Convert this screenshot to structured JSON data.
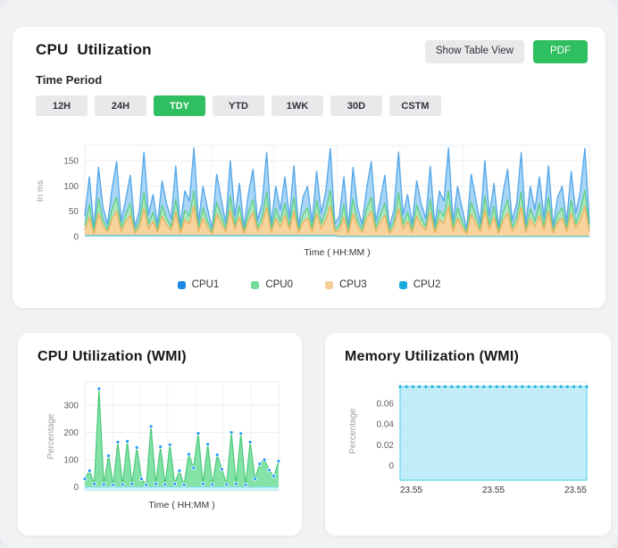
{
  "top_card": {
    "title": "CPU  Utilization",
    "actions": {
      "show_table": "Show Table View",
      "pdf": "PDF"
    },
    "time_period_label": "Time Period",
    "periods": [
      {
        "label": "12H",
        "active": false
      },
      {
        "label": "24H",
        "active": false
      },
      {
        "label": "TDY",
        "active": true
      },
      {
        "label": "YTD",
        "active": false
      },
      {
        "label": "1WK",
        "active": false
      },
      {
        "label": "30D",
        "active": false
      },
      {
        "label": "CSTM",
        "active": false
      }
    ],
    "legend": [
      {
        "label": "CPU1",
        "color": "#1e8ae8"
      },
      {
        "label": "CPU0",
        "color": "#76dc9a"
      },
      {
        "label": "CPU3",
        "color": "#f6cf96"
      },
      {
        "label": "CPU2",
        "color": "#18acdd"
      }
    ],
    "accent_green": "#2fbe60"
  },
  "chart_data": [
    {
      "id": "cpu",
      "type": "area",
      "stacked": true,
      "title": "CPU Utilization",
      "xlabel": "Time ( HH:MM )",
      "ylabel": "In ms",
      "ylim": [
        0,
        180
      ],
      "grid": true,
      "legend_position": "bottom",
      "yticks": [
        {
          "v": 0,
          "label": "0"
        },
        {
          "v": 50,
          "label": "50"
        },
        {
          "v": 100,
          "label": "100"
        },
        {
          "v": 150,
          "label": "150"
        }
      ],
      "xticks": [],
      "series": [
        {
          "name": "CPU3",
          "mode": "stack",
          "fill": "#f7d49e",
          "stroke": "#efb360",
          "values": [
            12,
            38,
            5,
            45,
            20,
            8,
            35,
            50,
            10,
            28,
            42,
            6,
            18,
            55,
            15,
            30,
            8,
            40,
            22,
            12,
            48,
            7,
            33,
            25,
            60,
            10,
            36,
            18,
            5,
            44,
            26,
            9,
            52,
            14,
            38,
            6,
            30,
            47,
            11,
            24,
            58,
            8,
            35,
            19,
            42,
            13,
            50,
            7,
            28,
            36,
            10,
            45,
            16,
            32,
            60,
            9,
            12,
            38,
            5,
            45,
            20,
            8,
            35,
            50,
            10,
            28,
            42,
            6,
            18,
            55,
            15,
            30,
            8,
            40,
            22,
            12,
            48,
            7,
            33,
            25,
            60,
            10,
            36,
            18,
            5,
            44,
            26,
            9,
            52,
            14,
            38,
            6,
            30,
            47,
            11,
            24,
            58,
            8,
            35,
            19,
            42,
            13,
            50,
            7,
            28,
            36,
            10,
            45,
            16,
            32,
            60,
            9
          ]
        },
        {
          "name": "CPU0",
          "mode": "stack",
          "fill": "#ace6bd",
          "stroke": "#61cf8a",
          "values": [
            10,
            25,
            4,
            30,
            12,
            6,
            20,
            28,
            8,
            15,
            24,
            5,
            12,
            32,
            10,
            18,
            6,
            22,
            14,
            8,
            26,
            5,
            19,
            15,
            30,
            7,
            21,
            12,
            4,
            24,
            16,
            6,
            28,
            9,
            22,
            4,
            18,
            26,
            7,
            14,
            30,
            5,
            20,
            11,
            24,
            8,
            28,
            4,
            16,
            21,
            6,
            26,
            10,
            19,
            32,
            5,
            10,
            25,
            4,
            30,
            12,
            6,
            20,
            28,
            8,
            15,
            24,
            5,
            12,
            32,
            10,
            18,
            6,
            22,
            14,
            8,
            26,
            5,
            19,
            15,
            30,
            7,
            21,
            12,
            4,
            24,
            16,
            6,
            28,
            9,
            22,
            4,
            18,
            26,
            7,
            14,
            30,
            5,
            20,
            11,
            24,
            8,
            28,
            4,
            16,
            21,
            6,
            26,
            10,
            19,
            32,
            5
          ]
        },
        {
          "name": "CPU1",
          "mode": "stack",
          "fill": "#aad6f6",
          "stroke": "#58a9e9",
          "values": [
            18,
            55,
            6,
            62,
            25,
            10,
            40,
            70,
            12,
            30,
            55,
            8,
            22,
            80,
            18,
            35,
            10,
            48,
            28,
            15,
            65,
            9,
            38,
            30,
            85,
            12,
            42,
            25,
            6,
            55,
            32,
            11,
            70,
            18,
            45,
            8,
            38,
            60,
            13,
            28,
            78,
            10,
            44,
            23,
            52,
            16,
            62,
            9,
            34,
            42,
            12,
            58,
            20,
            38,
            82,
            11,
            18,
            55,
            6,
            62,
            25,
            10,
            40,
            70,
            12,
            30,
            55,
            8,
            22,
            80,
            18,
            35,
            10,
            48,
            28,
            15,
            65,
            9,
            38,
            30,
            85,
            12,
            42,
            25,
            6,
            55,
            32,
            11,
            70,
            18,
            45,
            8,
            38,
            60,
            13,
            28,
            78,
            10,
            44,
            23,
            52,
            16,
            62,
            9,
            34,
            42,
            12,
            58,
            20,
            38,
            82,
            11
          ]
        },
        {
          "name": "CPU2",
          "mode": "overlay",
          "fill": "#c2ecf4",
          "opacity": 0.9,
          "stroke": "#2bbbd9",
          "strokeW": 1,
          "values": [
            2,
            2,
            2,
            2,
            2,
            2,
            2,
            2,
            2,
            2,
            2,
            2,
            2,
            2,
            2,
            2,
            2,
            2,
            2,
            2,
            2,
            2,
            2,
            2,
            2,
            2,
            2,
            2,
            2,
            2,
            2,
            2,
            2,
            2,
            2,
            2,
            2,
            2,
            2,
            2,
            2,
            2,
            2,
            2,
            2,
            2,
            2,
            2,
            2,
            2,
            2,
            2,
            2,
            2,
            2,
            2,
            0,
            0,
            0,
            0,
            0,
            0,
            0,
            0,
            0,
            0,
            0,
            0,
            0,
            0,
            0,
            0,
            0,
            0,
            0,
            0,
            0,
            0,
            0,
            0,
            0,
            0,
            0,
            0,
            0,
            0,
            0,
            0,
            0,
            0,
            0,
            0,
            0,
            0,
            0,
            0,
            0,
            0,
            0,
            0,
            0,
            0,
            0,
            0,
            0,
            0,
            0,
            0,
            0,
            0,
            0,
            0
          ]
        }
      ]
    },
    {
      "id": "cpu_wmi",
      "type": "area",
      "stacked": false,
      "title": "CPU Utilization (WMI)",
      "xlabel": "Time ( HH:MM )",
      "ylabel": "Percentage",
      "ylim": [
        -14,
        385
      ],
      "grid": true,
      "yticks": [
        {
          "v": 0,
          "label": "0"
        },
        {
          "v": 100,
          "label": "100"
        },
        {
          "v": 200,
          "label": "200"
        },
        {
          "v": 300,
          "label": "300"
        }
      ],
      "xticks": [],
      "series": [
        {
          "name": "CPU",
          "mode": "overlay",
          "fill": "#83e3a6",
          "stroke": "#4bc97b",
          "markers": {
            "color": "#2a9df4",
            "r": 2,
            "stroke": "#ffffff"
          },
          "values": [
            30,
            60,
            12,
            360,
            10,
            115,
            8,
            165,
            10,
            168,
            12,
            145,
            30,
            8,
            222,
            12,
            148,
            10,
            155,
            12,
            60,
            8,
            120,
            70,
            197,
            12,
            157,
            10,
            118,
            65,
            10,
            200,
            12,
            196,
            8,
            165,
            30,
            85,
            100,
            62,
            40,
            95
          ]
        },
        {
          "name": "",
          "mode": "overlay",
          "fill": "#cdf3fa",
          "stroke": "#7ce0f0",
          "strokeW": 1,
          "values": [
            0,
            0,
            0,
            0,
            0,
            0,
            0,
            0,
            0,
            0,
            0,
            0,
            0,
            0,
            0,
            0,
            0,
            0,
            0,
            0,
            0,
            0,
            0,
            0,
            0,
            0,
            0,
            0,
            0,
            0,
            0,
            0,
            0,
            0,
            0,
            0,
            0,
            0,
            0,
            0,
            0,
            0
          ]
        }
      ]
    },
    {
      "id": "mem_wmi",
      "type": "area",
      "stacked": false,
      "title": "Memory Utilization (WMI)",
      "xlabel": "",
      "ylabel": "Percentage",
      "ylim": [
        -0.014,
        0.0805
      ],
      "grid": true,
      "yticks": [
        {
          "v": 0,
          "label": "0"
        },
        {
          "v": 0.02,
          "label": "0.02"
        },
        {
          "v": 0.04,
          "label": "0.04"
        },
        {
          "v": 0.06,
          "label": "0.06"
        }
      ],
      "xticks": [
        {
          "frac": 0,
          "label": "23.55"
        },
        {
          "frac": 0.5,
          "label": "23.55"
        },
        {
          "frac": 1,
          "label": "23.55"
        }
      ],
      "series": [
        {
          "name": "Memory",
          "mode": "overlay",
          "fill": "#8fdef2",
          "opacity": 0.55,
          "stroke": "#66d4ec",
          "strokeAll": true,
          "markers": {
            "color": "#22b2d8",
            "r": 1.6
          },
          "values": [
            0.076,
            0.076,
            0.076,
            0.076,
            0.076,
            0.076,
            0.076,
            0.076,
            0.076,
            0.076,
            0.076,
            0.076,
            0.076,
            0.076,
            0.076,
            0.076,
            0.076,
            0.076,
            0.076,
            0.076,
            0.076,
            0.076,
            0.076,
            0.076,
            0.076,
            0.076,
            0.076,
            0.076,
            0.076,
            0.076
          ]
        }
      ]
    }
  ]
}
